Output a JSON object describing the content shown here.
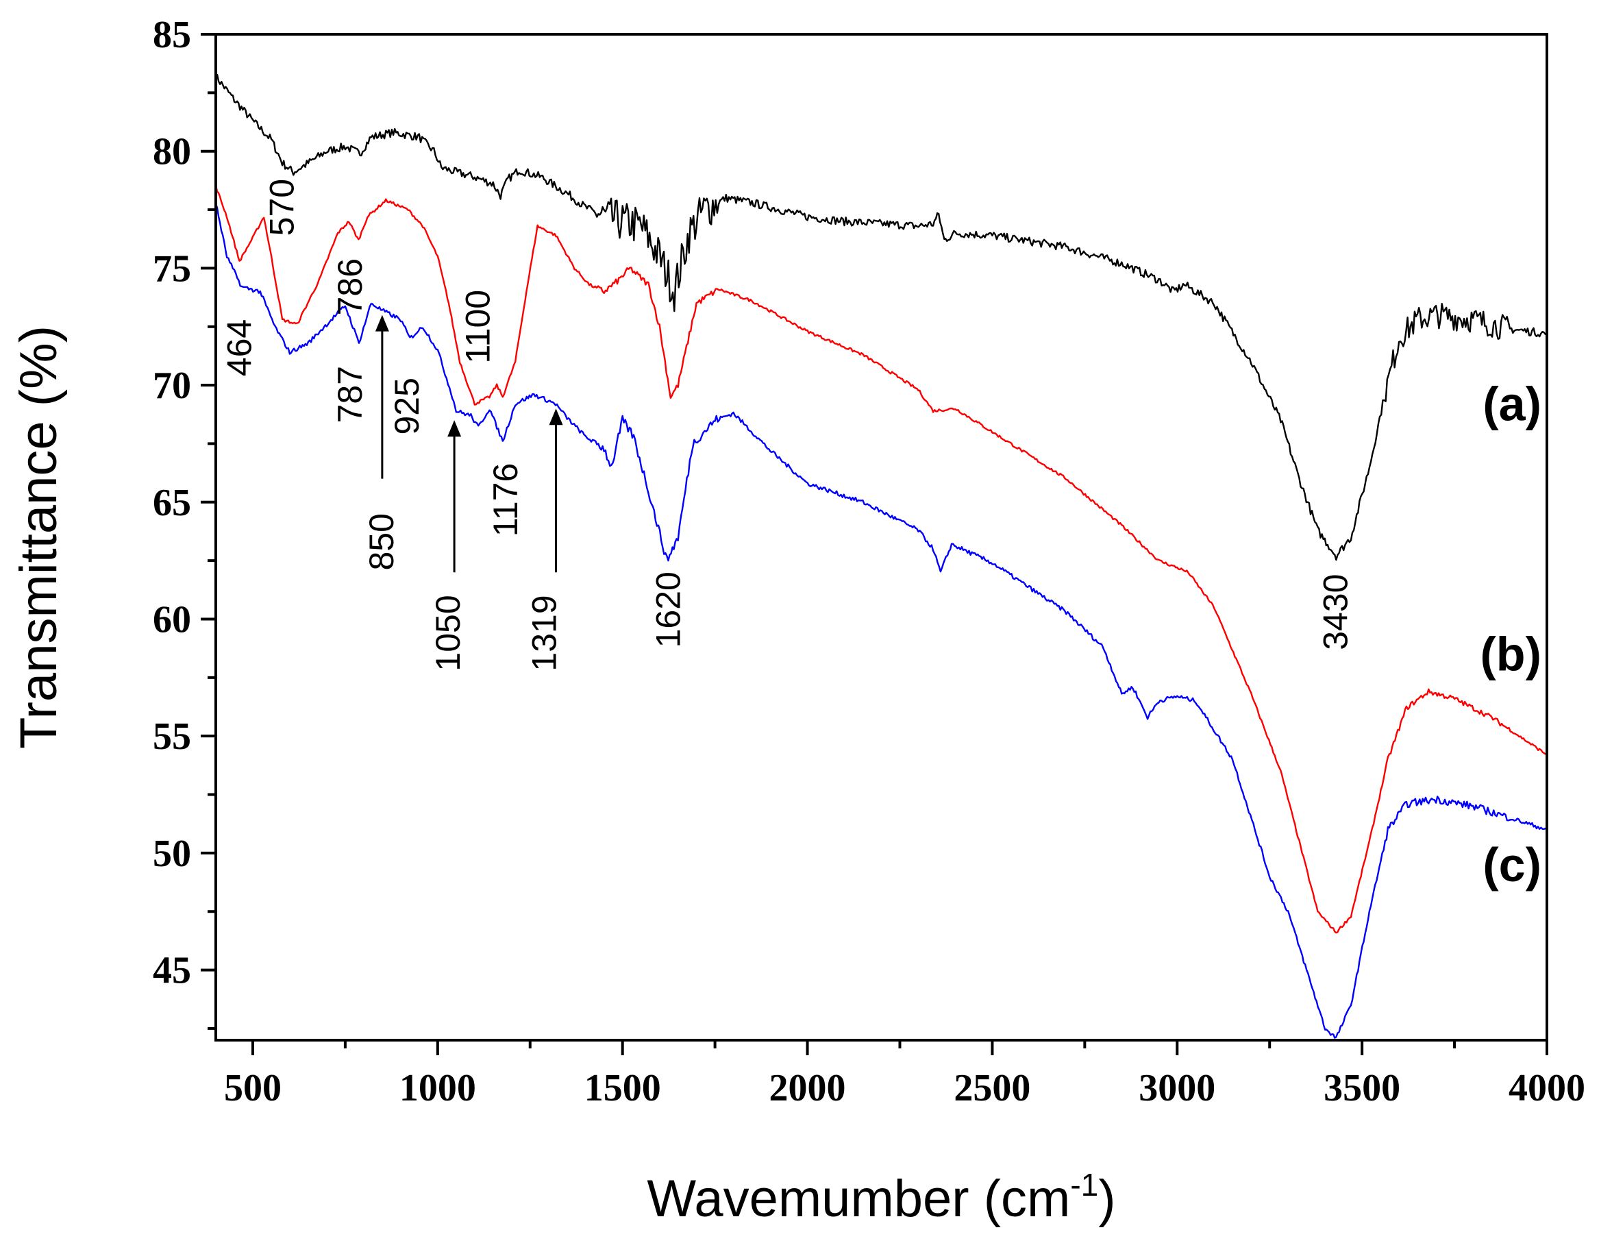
{
  "chart_data": {
    "type": "line",
    "xlabel": "Wavemumber (cm",
    "xlabel_sup": "-1",
    "xlabel_close": ")",
    "ylabel": "Transmittance (%)",
    "xlim": [
      400,
      4000
    ],
    "ylim": [
      42,
      85
    ],
    "x_ticks": [
      500,
      1000,
      1500,
      2000,
      2500,
      3000,
      3500,
      4000
    ],
    "y_ticks": [
      45,
      50,
      55,
      60,
      65,
      70,
      75,
      80,
      85
    ],
    "grid": false,
    "series": [
      {
        "name": "(a)",
        "color": "#000000",
        "noise": 0.35,
        "points": [
          [
            400,
            83.2
          ],
          [
            450,
            82.2
          ],
          [
            500,
            81.3
          ],
          [
            550,
            80.5
          ],
          [
            580,
            79.5
          ],
          [
            610,
            79.1
          ],
          [
            650,
            79.5
          ],
          [
            700,
            80.0
          ],
          [
            750,
            80.2
          ],
          [
            790,
            79.9
          ],
          [
            820,
            80.6
          ],
          [
            880,
            80.8
          ],
          [
            950,
            80.6
          ],
          [
            990,
            80.0
          ],
          [
            1010,
            79.3
          ],
          [
            1050,
            79.1
          ],
          [
            1100,
            78.9
          ],
          [
            1150,
            78.6
          ],
          [
            1170,
            78.1
          ],
          [
            1190,
            78.8
          ],
          [
            1220,
            79.2
          ],
          [
            1280,
            78.9
          ],
          [
            1350,
            78.2
          ],
          [
            1400,
            77.6
          ],
          [
            1450,
            77.2
          ],
          [
            1500,
            77.0
          ],
          [
            1550,
            76.8
          ],
          [
            1600,
            75.5
          ],
          [
            1640,
            74.0
          ],
          [
            1680,
            76.5
          ],
          [
            1720,
            77.5
          ],
          [
            1780,
            78.0
          ],
          [
            1850,
            77.8
          ],
          [
            2000,
            77.2
          ],
          [
            2100,
            77.0
          ],
          [
            2300,
            76.8
          ],
          [
            2340,
            76.9
          ],
          [
            2355,
            77.3
          ],
          [
            2370,
            76.2
          ],
          [
            2400,
            76.5
          ],
          [
            2500,
            76.4
          ],
          [
            2700,
            75.9
          ],
          [
            2850,
            75.2
          ],
          [
            2950,
            74.5
          ],
          [
            2990,
            74.0
          ],
          [
            3020,
            74.3
          ],
          [
            3100,
            73.5
          ],
          [
            3200,
            71.0
          ],
          [
            3280,
            68.5
          ],
          [
            3330,
            66.0
          ],
          [
            3380,
            63.8
          ],
          [
            3430,
            62.7
          ],
          [
            3470,
            63.5
          ],
          [
            3520,
            66.5
          ],
          [
            3560,
            69.5
          ],
          [
            3600,
            72.0
          ],
          [
            3650,
            72.8
          ],
          [
            3700,
            73.0
          ],
          [
            3800,
            72.8
          ],
          [
            3900,
            72.4
          ],
          [
            4000,
            72.2
          ]
        ]
      },
      {
        "name": "(b)",
        "color": "#ff0000",
        "noise": 0.12,
        "points": [
          [
            400,
            78.5
          ],
          [
            430,
            77.2
          ],
          [
            464,
            75.3
          ],
          [
            500,
            76.3
          ],
          [
            530,
            77.2
          ],
          [
            550,
            75.5
          ],
          [
            580,
            72.8
          ],
          [
            620,
            72.6
          ],
          [
            680,
            74.5
          ],
          [
            730,
            76.5
          ],
          [
            760,
            77.0
          ],
          [
            786,
            76.2
          ],
          [
            810,
            77.2
          ],
          [
            860,
            77.9
          ],
          [
            920,
            77.5
          ],
          [
            960,
            76.8
          ],
          [
            1000,
            75.5
          ],
          [
            1030,
            73.5
          ],
          [
            1060,
            71.0
          ],
          [
            1100,
            69.2
          ],
          [
            1140,
            69.5
          ],
          [
            1160,
            70.0
          ],
          [
            1176,
            69.5
          ],
          [
            1210,
            71.0
          ],
          [
            1240,
            74.0
          ],
          [
            1270,
            76.8
          ],
          [
            1320,
            76.4
          ],
          [
            1370,
            75.0
          ],
          [
            1410,
            74.3
          ],
          [
            1450,
            74.0
          ],
          [
            1490,
            74.5
          ],
          [
            1520,
            75.0
          ],
          [
            1570,
            74.3
          ],
          [
            1600,
            72.5
          ],
          [
            1630,
            69.5
          ],
          [
            1650,
            70.0
          ],
          [
            1700,
            73.5
          ],
          [
            1760,
            74.1
          ],
          [
            1850,
            73.6
          ],
          [
            2000,
            72.3
          ],
          [
            2150,
            71.3
          ],
          [
            2300,
            69.8
          ],
          [
            2340,
            68.9
          ],
          [
            2400,
            69.0
          ],
          [
            2500,
            68.0
          ],
          [
            2700,
            66.0
          ],
          [
            2850,
            64.0
          ],
          [
            2950,
            62.5
          ],
          [
            3000,
            62.2
          ],
          [
            3030,
            62.0
          ],
          [
            3100,
            60.5
          ],
          [
            3200,
            56.8
          ],
          [
            3280,
            53.5
          ],
          [
            3330,
            50.5
          ],
          [
            3380,
            47.5
          ],
          [
            3430,
            46.6
          ],
          [
            3470,
            47.3
          ],
          [
            3520,
            50.5
          ],
          [
            3570,
            54.0
          ],
          [
            3620,
            56.2
          ],
          [
            3680,
            56.9
          ],
          [
            3750,
            56.6
          ],
          [
            3850,
            55.8
          ],
          [
            4000,
            54.2
          ]
        ]
      },
      {
        "name": "(c)",
        "color": "#0000ff",
        "noise": 0.18,
        "points": [
          [
            400,
            77.8
          ],
          [
            430,
            75.5
          ],
          [
            470,
            74.2
          ],
          [
            520,
            74.0
          ],
          [
            560,
            72.5
          ],
          [
            600,
            71.4
          ],
          [
            650,
            71.8
          ],
          [
            700,
            72.6
          ],
          [
            750,
            73.4
          ],
          [
            787,
            71.8
          ],
          [
            820,
            73.5
          ],
          [
            850,
            73.2
          ],
          [
            900,
            72.8
          ],
          [
            925,
            72.0
          ],
          [
            960,
            72.5
          ],
          [
            1000,
            71.5
          ],
          [
            1040,
            69.5
          ],
          [
            1050,
            68.9
          ],
          [
            1090,
            68.7
          ],
          [
            1110,
            68.2
          ],
          [
            1140,
            69.0
          ],
          [
            1176,
            67.6
          ],
          [
            1210,
            69.2
          ],
          [
            1260,
            69.6
          ],
          [
            1319,
            69.2
          ],
          [
            1350,
            68.6
          ],
          [
            1400,
            67.8
          ],
          [
            1450,
            67.3
          ],
          [
            1470,
            66.5
          ],
          [
            1500,
            68.5
          ],
          [
            1530,
            67.8
          ],
          [
            1570,
            65.5
          ],
          [
            1620,
            62.5
          ],
          [
            1650,
            63.5
          ],
          [
            1690,
            67.5
          ],
          [
            1750,
            68.5
          ],
          [
            1800,
            68.8
          ],
          [
            1900,
            67.2
          ],
          [
            2000,
            65.8
          ],
          [
            2150,
            65.0
          ],
          [
            2300,
            63.8
          ],
          [
            2340,
            63.0
          ],
          [
            2360,
            62.0
          ],
          [
            2390,
            63.2
          ],
          [
            2500,
            62.4
          ],
          [
            2700,
            60.3
          ],
          [
            2800,
            58.8
          ],
          [
            2850,
            56.8
          ],
          [
            2880,
            57.1
          ],
          [
            2920,
            55.8
          ],
          [
            2950,
            56.5
          ],
          [
            3000,
            56.7
          ],
          [
            3050,
            56.5
          ],
          [
            3150,
            54.0
          ],
          [
            3250,
            49.0
          ],
          [
            3300,
            47.5
          ],
          [
            3350,
            45.0
          ],
          [
            3400,
            42.5
          ],
          [
            3430,
            42.1
          ],
          [
            3470,
            43.5
          ],
          [
            3520,
            47.5
          ],
          [
            3570,
            51.0
          ],
          [
            3620,
            52.1
          ],
          [
            3700,
            52.3
          ],
          [
            3800,
            52.0
          ],
          [
            4000,
            51.0
          ]
        ]
      }
    ],
    "series_labels": [
      {
        "text": "(a)",
        "x": 3985,
        "y": 68.5
      },
      {
        "text": "(b)",
        "x": 3985,
        "y": 57.8
      },
      {
        "text": "(c)",
        "x": 3985,
        "y": 48.8
      }
    ],
    "annotations": [
      {
        "text": "570",
        "x": 610,
        "y": 77.6,
        "rotate": -90
      },
      {
        "text": "464",
        "x": 495,
        "y": 71.6,
        "rotate": -90
      },
      {
        "text": "786",
        "x": 795,
        "y": 74.2,
        "rotate": -90
      },
      {
        "text": "1100",
        "x": 1140,
        "y": 72.5,
        "rotate": -90
      },
      {
        "text": "787",
        "x": 795,
        "y": 69.6,
        "rotate": -90
      },
      {
        "text": "925",
        "x": 948,
        "y": 69.1,
        "rotate": -90
      },
      {
        "text": "850",
        "x": 880,
        "y": 63.3,
        "rotate": -90,
        "arrow": {
          "x": 850,
          "from": 66.0,
          "to": 73.0
        }
      },
      {
        "text": "1176",
        "x": 1215,
        "y": 65.1,
        "rotate": -90
      },
      {
        "text": "1050",
        "x": 1060,
        "y": 59.4,
        "rotate": -90,
        "arrow": {
          "x": 1045,
          "from": 62.0,
          "to": 68.5
        }
      },
      {
        "text": "1319",
        "x": 1320,
        "y": 59.4,
        "rotate": -90,
        "arrow": {
          "x": 1320,
          "from": 62.0,
          "to": 69.0
        }
      },
      {
        "text": "1620",
        "x": 1655,
        "y": 60.4,
        "rotate": -90
      },
      {
        "text": "3430",
        "x": 3460,
        "y": 60.3,
        "rotate": -90
      }
    ]
  }
}
